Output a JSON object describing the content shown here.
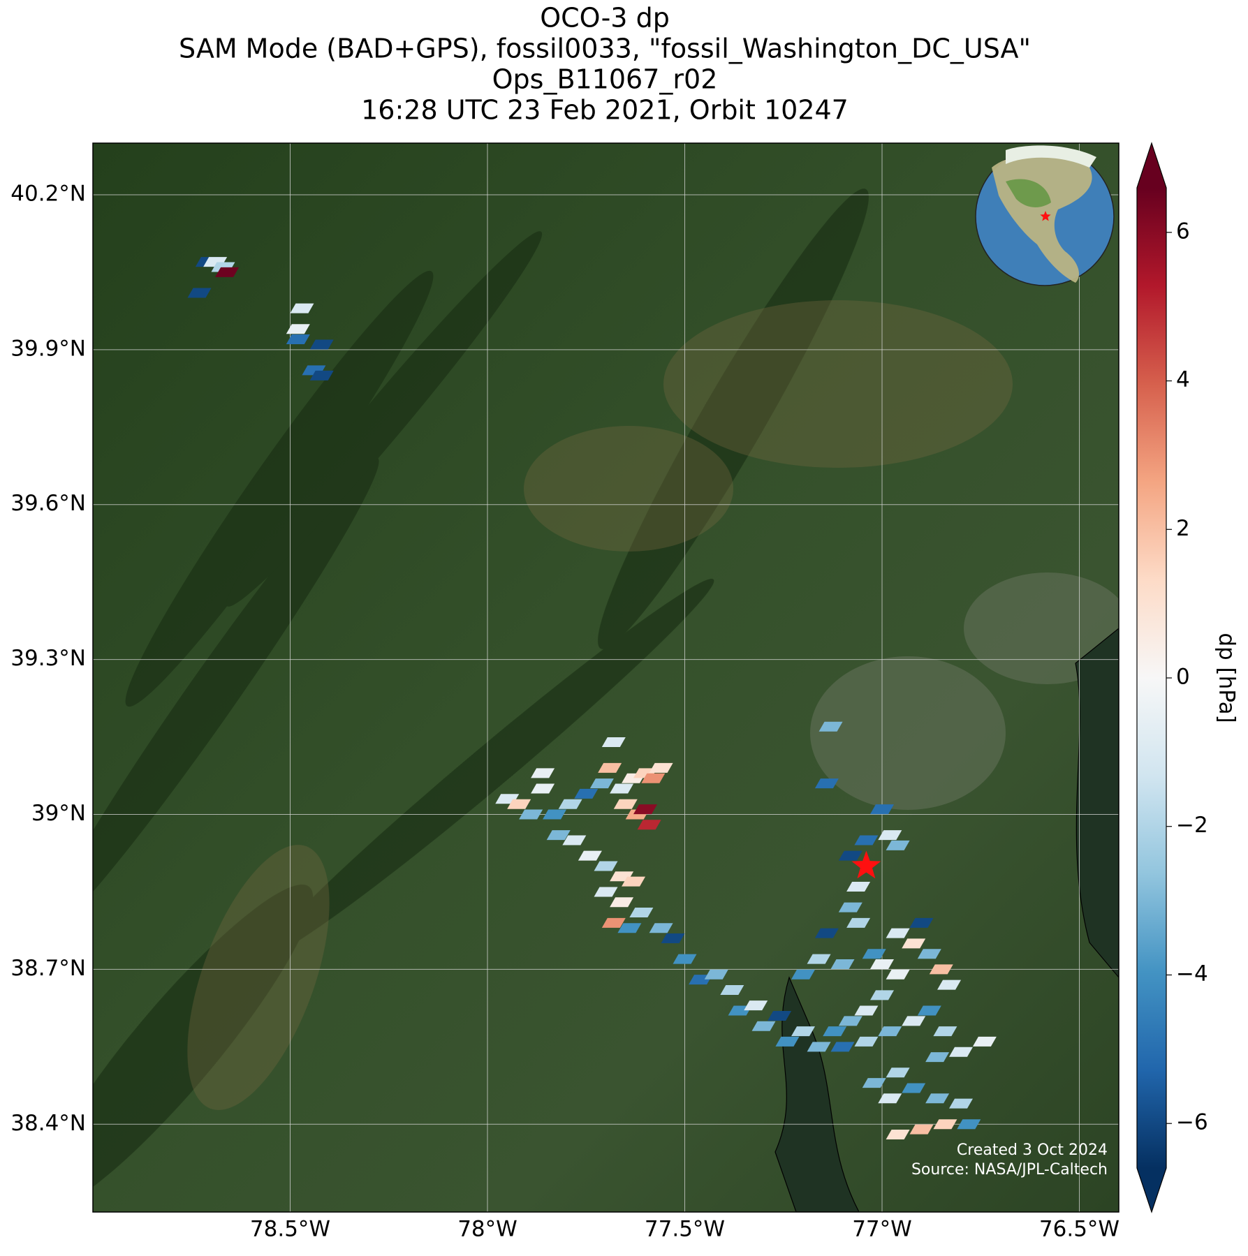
{
  "chart_data": {
    "type": "footprint-map",
    "title_lines": [
      "OCO-3 dp",
      "SAM Mode (BAD+GPS), fossil0033, \"fossil_Washington_DC_USA\"",
      "Ops_B11067_r02",
      "16:28 UTC 23 Feb 2021, Orbit 10247"
    ],
    "xlim": [
      -79.0,
      -76.4
    ],
    "ylim": [
      38.23,
      40.3
    ],
    "xticks": [
      {
        "value": -78.5,
        "label": "78.5°W"
      },
      {
        "value": -78,
        "label": "78°W"
      },
      {
        "value": -77.5,
        "label": "77.5°W"
      },
      {
        "value": -77,
        "label": "77°W"
      },
      {
        "value": -76.5,
        "label": "76.5°W"
      }
    ],
    "yticks": [
      {
        "value": 38.4,
        "label": "38.4°N"
      },
      {
        "value": 38.7,
        "label": "38.7°N"
      },
      {
        "value": 39,
        "label": "39°N"
      },
      {
        "value": 39.3,
        "label": "39.3°N"
      },
      {
        "value": 39.6,
        "label": "39.6°N"
      },
      {
        "value": 39.9,
        "label": "39.9°N"
      },
      {
        "value": 40.2,
        "label": "40.2°N"
      }
    ],
    "grid": true,
    "colorbar": {
      "label": "dp [hPa]",
      "lim": [
        -6.6,
        6.6
      ],
      "ticks": [
        {
          "value": -6,
          "label": "−6"
        },
        {
          "value": -4,
          "label": "−4"
        },
        {
          "value": -2,
          "label": "−2"
        },
        0,
        2,
        4,
        6
      ],
      "colormap": [
        "#053061",
        "#2166ac",
        "#4393c3",
        "#92c5de",
        "#d1e5f0",
        "#f7f7f7",
        "#fddbc7",
        "#f4a582",
        "#d6604d",
        "#b2182b",
        "#67001f"
      ]
    },
    "target": {
      "lon": -77.04,
      "lat": 38.9,
      "color": "#ff1010"
    },
    "soundings": {
      "lon": [
        -78.71,
        -78.69,
        -78.67,
        -78.66,
        -78.73,
        -78.47,
        -78.48,
        -78.48,
        -78.42,
        -78.44,
        -78.42,
        -77.95,
        -77.92,
        -77.86,
        -77.89,
        -77.83,
        -77.79,
        -77.75,
        -77.71,
        -77.69,
        -77.66,
        -77.63,
        -77.6,
        -77.58,
        -77.56,
        -77.65,
        -77.62,
        -77.6,
        -77.59,
        -77.82,
        -77.78,
        -77.74,
        -77.7,
        -77.66,
        -77.63,
        -77.7,
        -77.66,
        -77.61,
        -77.64,
        -77.68,
        -77.56,
        -77.68,
        -77.86,
        -77.53,
        -77.5,
        -77.46,
        -77.42,
        -77.38,
        -77.36,
        -77.32,
        -77.3,
        -77.26,
        -77.24,
        -77.2,
        -77.13,
        -77.14,
        -77.08,
        -77.04,
        -77.0,
        -76.98,
        -76.96,
        -77.06,
        -77.08,
        -77.06,
        -77.14,
        -77.02,
        -77.1,
        -77.16,
        -77.2,
        -77.0,
        -76.96,
        -76.92,
        -76.9,
        -76.88,
        -76.85,
        -76.83,
        -76.96,
        -77.0,
        -77.04,
        -77.08,
        -77.12,
        -77.16,
        -77.1,
        -77.04,
        -76.98,
        -76.92,
        -76.88,
        -76.84,
        -76.86,
        -76.8,
        -76.74,
        -76.96,
        -77.02,
        -76.98,
        -76.92,
        -76.86,
        -76.8,
        -76.78,
        -76.84,
        -76.9,
        -76.96
      ],
      "lat": [
        40.07,
        40.07,
        40.06,
        40.05,
        40.01,
        39.98,
        39.94,
        39.92,
        39.91,
        39.86,
        39.85,
        39.03,
        39.02,
        39.05,
        39.0,
        39.0,
        39.02,
        39.04,
        39.06,
        39.09,
        39.05,
        39.07,
        39.08,
        39.07,
        39.09,
        39.02,
        39.0,
        39.01,
        38.98,
        38.96,
        38.95,
        38.92,
        38.9,
        38.88,
        38.87,
        38.85,
        38.83,
        38.81,
        38.78,
        38.79,
        38.78,
        39.14,
        39.08,
        38.76,
        38.72,
        38.68,
        38.69,
        38.66,
        38.62,
        38.63,
        38.59,
        38.61,
        38.56,
        38.58,
        39.17,
        39.06,
        38.92,
        38.95,
        39.01,
        38.96,
        38.94,
        38.86,
        38.82,
        38.79,
        38.77,
        38.73,
        38.71,
        38.72,
        38.69,
        38.71,
        38.77,
        38.75,
        38.79,
        38.73,
        38.7,
        38.67,
        38.69,
        38.65,
        38.62,
        38.6,
        38.58,
        38.55,
        38.55,
        38.56,
        38.58,
        38.6,
        38.62,
        38.58,
        38.53,
        38.54,
        38.56,
        38.5,
        38.48,
        38.45,
        38.47,
        38.45,
        38.44,
        38.4,
        38.4,
        38.39,
        38.38
      ],
      "dp": [
        -6,
        -1,
        -2,
        6.5,
        -6,
        -1,
        -0.5,
        -5,
        -6,
        -5,
        -6,
        -1,
        1.5,
        -0.5,
        -3,
        -4,
        -2,
        -5,
        -3,
        2,
        -1,
        0.5,
        1.5,
        3,
        1,
        1.5,
        2.5,
        6,
        5,
        -3,
        -1,
        -0.5,
        -2,
        1,
        1.5,
        -1,
        0.5,
        -2,
        -4,
        3,
        -3,
        -1,
        -0.5,
        -6,
        -4,
        -5,
        -3,
        -2,
        -4,
        -1,
        -3,
        -6,
        -4,
        -2,
        -3,
        -5,
        -6,
        -5,
        -5,
        -1,
        -3,
        -1,
        -3,
        -2,
        -6,
        -4,
        -3,
        -2,
        -4,
        -0.5,
        -1,
        1,
        -6,
        -3,
        2,
        -1,
        -0.5,
        -2,
        -1,
        -3,
        -4,
        -3,
        -5,
        -2,
        -3,
        -1,
        -4,
        -2,
        -3,
        -1,
        -0.5,
        -2,
        -3,
        -1,
        -4,
        -3,
        -2,
        -4,
        1.5,
        2,
        1
      ]
    },
    "credits": [
      "Created 3 Oct 2024",
      "Source: NASA/JPL-Caltech"
    ]
  }
}
